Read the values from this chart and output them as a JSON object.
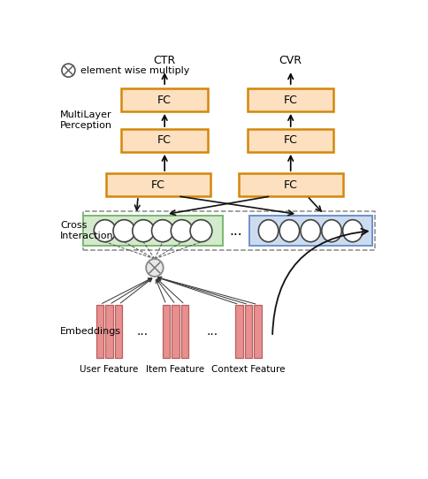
{
  "fig_width": 4.84,
  "fig_height": 5.42,
  "dpi": 100,
  "bg_color": "#ffffff",
  "fc_box_color": "#fde0c0",
  "fc_box_edge_color": "#d4870a",
  "green_box_color": "#d4eacc",
  "green_box_edge_color": "#7ab870",
  "blue_box_color": "#ccdcf0",
  "blue_box_edge_color": "#7090c8",
  "dashed_box_color": "#888888",
  "embed_bar_color": "#e89090",
  "embed_bar_edge_color": "#b86060",
  "title_CTR": "CTR",
  "title_CVR": "CVR",
  "label_multilayer": "MultiLayer\nPerception",
  "label_cross": "Cross\nInteraction",
  "label_embeddings": "Embeddings",
  "label_user": "User Feature",
  "label_item": "Item Feature",
  "label_context": "Context Feature",
  "label_element_wise": "element wise multiply",
  "label_fc": "FC",
  "arrow_color": "#111111",
  "line_color": "#555555",
  "mult_color": "#aaaaaa"
}
